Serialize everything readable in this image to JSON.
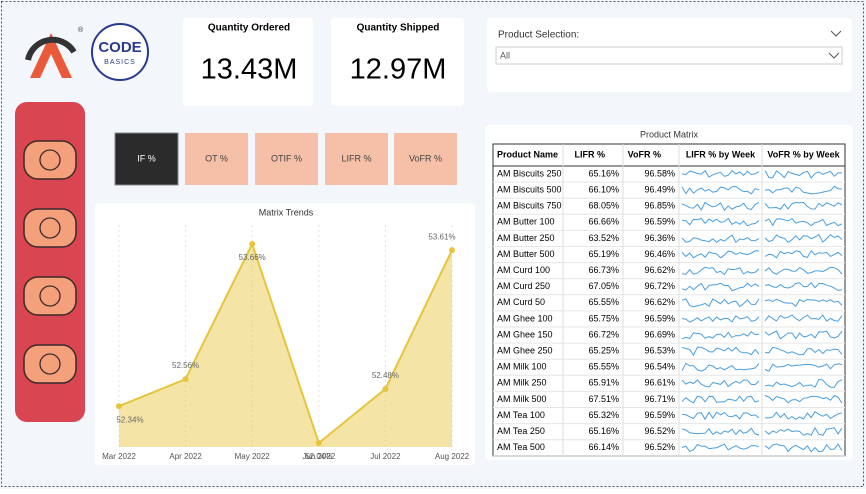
{
  "logo": {
    "brand": "CODE",
    "brand_sub": "BASICS"
  },
  "kpis": [
    {
      "title": "Quantity Ordered",
      "value": "13.43M"
    },
    {
      "title": "Quantity Shipped",
      "value": "12.97M"
    }
  ],
  "slicer": {
    "label": "Product Selection:",
    "selected": "All"
  },
  "metric_buttons": [
    "IF %",
    "OT %",
    "OTIF %",
    "LIFR %",
    "VoFR %"
  ],
  "chart_data": {
    "type": "area",
    "title": "Matrix Trends",
    "categories": [
      "Mar 2022",
      "Apr 2022",
      "May 2022",
      "Jun 2022",
      "Jul 2022",
      "Aug 2022"
    ],
    "values": [
      52.34,
      52.56,
      53.66,
      52.04,
      52.48,
      53.61
    ],
    "value_labels": [
      "52.34%",
      "52.56%",
      "53.66%",
      "52.04%",
      "52.48%",
      "53.61%"
    ],
    "color": "#e6c53c"
  },
  "table": {
    "title": "Product Matrix",
    "columns": [
      "Product Name",
      "LIFR %",
      "VoFR %",
      "LIFR % by Week",
      "VoFR % by Week"
    ],
    "rows": [
      [
        "AM Biscuits 250",
        "65.16%",
        "96.58%"
      ],
      [
        "AM Biscuits 500",
        "66.10%",
        "96.49%"
      ],
      [
        "AM Biscuits 750",
        "68.05%",
        "96.85%"
      ],
      [
        "AM Butter 100",
        "66.66%",
        "96.59%"
      ],
      [
        "AM Butter 250",
        "63.52%",
        "96.36%"
      ],
      [
        "AM Butter 500",
        "65.19%",
        "96.46%"
      ],
      [
        "AM Curd 100",
        "66.73%",
        "96.62%"
      ],
      [
        "AM Curd 250",
        "67.05%",
        "96.72%"
      ],
      [
        "AM Curd 50",
        "65.55%",
        "96.62%"
      ],
      [
        "AM Ghee 100",
        "65.75%",
        "96.59%"
      ],
      [
        "AM Ghee 150",
        "66.72%",
        "96.69%"
      ],
      [
        "AM Ghee 250",
        "65.25%",
        "96.53%"
      ],
      [
        "AM Milk 100",
        "65.55%",
        "96.54%"
      ],
      [
        "AM Milk 250",
        "65.91%",
        "96.61%"
      ],
      [
        "AM Milk 500",
        "67.51%",
        "96.71%"
      ],
      [
        "AM Tea 100",
        "65.32%",
        "96.59%"
      ],
      [
        "AM Tea 250",
        "65.16%",
        "96.52%"
      ],
      [
        "AM Tea 500",
        "66.14%",
        "96.52%"
      ]
    ]
  }
}
